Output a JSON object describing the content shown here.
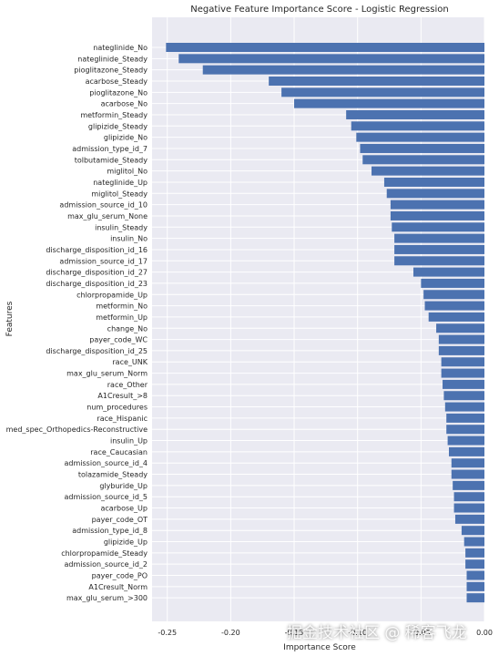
{
  "chart_data": {
    "type": "bar",
    "orientation": "horizontal",
    "title": "Negative Feature Importance Score - Logistic Regression",
    "xlabel": "Importance Score",
    "ylabel": "Features",
    "xlim": [
      -0.262,
      0.0
    ],
    "xticks": [
      -0.25,
      -0.2,
      -0.15,
      -0.1,
      -0.05,
      0.0
    ],
    "xtick_labels": [
      "-0.25",
      "-0.20",
      "-0.15",
      "-0.10",
      "-0.05",
      "0.00"
    ],
    "grid": true,
    "bar_color": "#4c72b0",
    "background": "#eaeaf2",
    "categories": [
      "nateglinide_No",
      "nateglinide_Steady",
      "pioglitazone_Steady",
      "acarbose_Steady",
      "pioglitazone_No",
      "acarbose_No",
      "metformin_Steady",
      "glipizide_Steady",
      "glipizide_No",
      "admission_type_id_7",
      "tolbutamide_Steady",
      "miglitol_No",
      "nateglinide_Up",
      "miglitol_Steady",
      "admission_source_id_10",
      "max_glu_serum_None",
      "insulin_Steady",
      "insulin_No",
      "discharge_disposition_id_16",
      "admission_source_id_17",
      "discharge_disposition_id_27",
      "discharge_disposition_id_23",
      "chlorpropamide_Up",
      "metformin_No",
      "metformin_Up",
      "change_No",
      "payer_code_WC",
      "discharge_disposition_id_25",
      "race_UNK",
      "max_glu_serum_Norm",
      "race_Other",
      "A1Cresult_>8",
      "num_procedures",
      "race_Hispanic",
      "med_spec_Orthopedics-Reconstructive",
      "insulin_Up",
      "race_Caucasian",
      "admission_source_id_4",
      "tolazamide_Steady",
      "glyburide_Up",
      "admission_source_id_5",
      "acarbose_Up",
      "payer_code_OT",
      "admission_type_id_8",
      "glipizide_Up",
      "chlorpropamide_Steady",
      "admission_source_id_2",
      "payer_code_PO",
      "A1Cresult_Norm",
      "max_glu_serum_>300"
    ],
    "values": [
      -0.251,
      -0.241,
      -0.222,
      -0.17,
      -0.16,
      -0.15,
      -0.109,
      -0.105,
      -0.101,
      -0.098,
      -0.096,
      -0.089,
      -0.079,
      -0.077,
      -0.074,
      -0.074,
      -0.073,
      -0.071,
      -0.071,
      -0.071,
      -0.056,
      -0.05,
      -0.048,
      -0.047,
      -0.044,
      -0.038,
      -0.036,
      -0.036,
      -0.034,
      -0.034,
      -0.033,
      -0.032,
      -0.031,
      -0.03,
      -0.03,
      -0.029,
      -0.028,
      -0.026,
      -0.026,
      -0.025,
      -0.024,
      -0.024,
      -0.023,
      -0.018,
      -0.016,
      -0.015,
      -0.015,
      -0.014,
      -0.014,
      -0.014
    ]
  },
  "watermark": "掘金技术社区 @ 稀客飞龙"
}
